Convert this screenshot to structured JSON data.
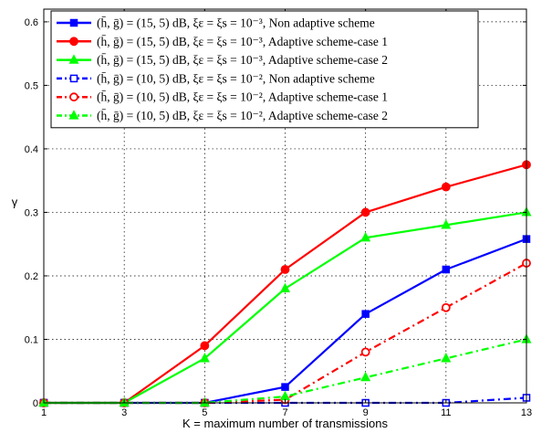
{
  "chart_data": {
    "type": "line",
    "title": "",
    "xlabel": "K = maximum number of transmissions",
    "ylabel": "γ",
    "xlim": [
      1,
      13
    ],
    "ylim": [
      0,
      0.62
    ],
    "xticks": [
      1,
      3,
      5,
      7,
      9,
      11,
      13
    ],
    "yticks": [
      0,
      0.1,
      0.2,
      0.3,
      0.4,
      0.5,
      0.6
    ],
    "grid": true,
    "legend_position": "top-left",
    "x": [
      1,
      3,
      5,
      7,
      9,
      11,
      13
    ],
    "series": [
      {
        "name": "(h̄, ḡ) = (15, 5) dB, ξε = ξs = 10⁻³, Non adaptive scheme",
        "values": [
          0,
          0,
          0,
          0.025,
          0.14,
          0.21,
          0.258
        ],
        "color": "#0000ff",
        "marker": "square",
        "dash": "solid"
      },
      {
        "name": "(h̄, ḡ) = (15, 5) dB, ξε = ξs = 10⁻³, Adaptive scheme-case 1",
        "values": [
          0,
          0,
          0.09,
          0.21,
          0.3,
          0.34,
          0.375
        ],
        "color": "#ff0000",
        "marker": "circle",
        "dash": "solid"
      },
      {
        "name": "(h̄, ḡ) = (15, 5) dB, ξε = ξs = 10⁻³, Adaptive scheme-case 2",
        "values": [
          0,
          0,
          0.07,
          0.18,
          0.26,
          0.28,
          0.3
        ],
        "color": "#00ff00",
        "marker": "triangle",
        "dash": "solid"
      },
      {
        "name": "(h̄, ḡ) = (10, 5) dB, ξε = ξs = 10⁻², Non adaptive scheme",
        "values": [
          0,
          0,
          0,
          0,
          0,
          0,
          0.008
        ],
        "color": "#0000ff",
        "marker": "square-open",
        "dash": "dashdot"
      },
      {
        "name": "(h̄, ḡ) = (10, 5) dB, ξε = ξs = 10⁻², Adaptive scheme-case 1",
        "values": [
          0,
          0,
          0,
          0.005,
          0.08,
          0.15,
          0.22
        ],
        "color": "#ff0000",
        "marker": "circle-open",
        "dash": "dashdot"
      },
      {
        "name": "(h̄, ḡ) = (10, 5) dB, ξε = ξs = 10⁻², Adaptive scheme-case 2",
        "values": [
          0,
          0,
          0,
          0.01,
          0.04,
          0.07,
          0.1
        ],
        "color": "#00ff00",
        "marker": "triangle",
        "dash": "dashdot"
      }
    ]
  }
}
